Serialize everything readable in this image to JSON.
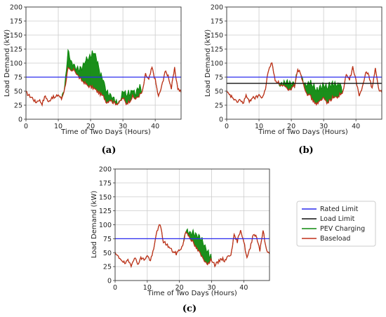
{
  "colors": {
    "rated_limit": "#2a2aee",
    "load_limit": "#111111",
    "pev_charging": "#0f8a0f",
    "baseload": "#c0301a",
    "grid": "#cccccc",
    "axis": "#333333"
  },
  "legend": {
    "placement": "right",
    "entries": [
      "Rated Limit",
      "Load Limit",
      "PEV Charging",
      "Baseload"
    ]
  },
  "chart_data": [
    {
      "type": "line",
      "panel": "(a)",
      "xlabel": "Time of Two Days (Hours)",
      "ylabel": "Load Demand (kW)",
      "xlim": [
        0,
        48
      ],
      "ylim": [
        0,
        200
      ],
      "xticks": [
        0,
        10,
        20,
        30,
        40
      ],
      "yticks": [
        0,
        25,
        50,
        75,
        100,
        125,
        150,
        175,
        200
      ],
      "grid": true,
      "rated_limit": 75,
      "x": [
        0,
        1,
        2,
        3,
        4,
        5,
        6,
        7,
        8,
        9,
        10,
        11,
        12,
        13,
        14,
        15,
        16,
        17,
        18,
        19,
        20,
        21,
        22,
        23,
        24,
        25,
        26,
        27,
        28,
        29,
        30,
        31,
        32,
        33,
        34,
        35,
        36,
        37,
        38,
        39,
        40,
        41,
        42,
        43,
        44,
        45,
        46,
        47,
        48
      ],
      "series": [
        {
          "name": "Baseload",
          "values": [
            48,
            42,
            38,
            30,
            35,
            28,
            42,
            30,
            40,
            38,
            44,
            36,
            55,
            90,
            85,
            88,
            78,
            70,
            66,
            60,
            58,
            55,
            50,
            45,
            40,
            30,
            35,
            30,
            28,
            30,
            38,
            28,
            32,
            40,
            36,
            42,
            48,
            80,
            70,
            92,
            70,
            40,
            58,
            85,
            78,
            55,
            90,
            55,
            48
          ]
        },
        {
          "name": "PEV Charging",
          "values": [
            48,
            42,
            38,
            30,
            35,
            28,
            42,
            30,
            40,
            38,
            44,
            36,
            60,
            120,
            100,
            95,
            90,
            88,
            100,
            108,
            112,
            120,
            105,
            80,
            68,
            50,
            45,
            38,
            32,
            30,
            50,
            45,
            48,
            52,
            45,
            60,
            48,
            80,
            70,
            92,
            70,
            40,
            58,
            85,
            78,
            55,
            90,
            55,
            48
          ]
        }
      ]
    },
    {
      "type": "line",
      "panel": "(b)",
      "xlabel": "Time of Two Days (Hours)",
      "ylabel": "Load Demand (kW)",
      "xlim": [
        0,
        48
      ],
      "ylim": [
        0,
        200
      ],
      "xticks": [
        0,
        10,
        20,
        30,
        40
      ],
      "yticks": [
        0,
        25,
        50,
        75,
        100,
        125,
        150,
        175,
        200
      ],
      "grid": true,
      "rated_limit": 75,
      "load_limit": 64,
      "x": [
        0,
        1,
        2,
        3,
        4,
        5,
        6,
        7,
        8,
        9,
        10,
        11,
        12,
        13,
        14,
        15,
        16,
        17,
        18,
        19,
        20,
        21,
        22,
        23,
        24,
        25,
        26,
        27,
        28,
        29,
        30,
        31,
        32,
        33,
        34,
        35,
        36,
        37,
        38,
        39,
        40,
        41,
        42,
        43,
        44,
        45,
        46,
        47,
        48
      ],
      "series": [
        {
          "name": "Baseload",
          "values": [
            48,
            42,
            38,
            30,
            35,
            28,
            42,
            30,
            40,
            38,
            44,
            36,
            55,
            90,
            100,
            70,
            65,
            60,
            58,
            50,
            55,
            60,
            90,
            80,
            58,
            45,
            40,
            30,
            28,
            32,
            38,
            30,
            34,
            40,
            38,
            44,
            48,
            80,
            70,
            92,
            70,
            40,
            58,
            85,
            78,
            55,
            90,
            55,
            48
          ]
        },
        {
          "name": "PEV Charging",
          "values": [
            48,
            42,
            38,
            30,
            35,
            28,
            42,
            30,
            40,
            38,
            44,
            36,
            55,
            90,
            100,
            70,
            65,
            62,
            64,
            64,
            64,
            62,
            90,
            80,
            64,
            64,
            64,
            58,
            52,
            56,
            60,
            58,
            62,
            64,
            60,
            64,
            48,
            80,
            70,
            92,
            70,
            40,
            58,
            85,
            78,
            55,
            90,
            55,
            48
          ]
        }
      ]
    },
    {
      "type": "line",
      "panel": "(c)",
      "xlabel": "Time of Two Days (Hours)",
      "ylabel": "Load Demand (kW)",
      "xlim": [
        0,
        48
      ],
      "ylim": [
        0,
        200
      ],
      "xticks": [
        0,
        10,
        20,
        30,
        40
      ],
      "yticks": [
        0,
        25,
        50,
        75,
        100,
        125,
        150,
        175,
        200
      ],
      "grid": true,
      "rated_limit": 75,
      "x": [
        0,
        1,
        2,
        3,
        4,
        5,
        6,
        7,
        8,
        9,
        10,
        11,
        12,
        13,
        14,
        15,
        16,
        17,
        18,
        19,
        20,
        21,
        22,
        23,
        24,
        25,
        26,
        27,
        28,
        29,
        30,
        31,
        32,
        33,
        34,
        35,
        36,
        37,
        38,
        39,
        40,
        41,
        42,
        43,
        44,
        45,
        46,
        47,
        48
      ],
      "series": [
        {
          "name": "Baseload",
          "values": [
            48,
            42,
            38,
            30,
            35,
            28,
            42,
            30,
            40,
            38,
            44,
            36,
            55,
            90,
            100,
            70,
            65,
            58,
            52,
            48,
            55,
            62,
            88,
            80,
            70,
            60,
            52,
            42,
            35,
            30,
            38,
            28,
            32,
            40,
            36,
            42,
            48,
            80,
            70,
            92,
            70,
            40,
            58,
            85,
            78,
            55,
            90,
            55,
            48
          ]
        },
        {
          "name": "PEV Charging",
          "values": [
            48,
            42,
            38,
            30,
            35,
            28,
            42,
            30,
            40,
            38,
            44,
            36,
            55,
            90,
            100,
            70,
            65,
            58,
            52,
            48,
            55,
            62,
            90,
            88,
            85,
            82,
            78,
            72,
            62,
            50,
            38,
            28,
            32,
            40,
            36,
            42,
            48,
            80,
            70,
            92,
            70,
            40,
            58,
            85,
            78,
            55,
            90,
            55,
            48
          ]
        }
      ]
    }
  ]
}
